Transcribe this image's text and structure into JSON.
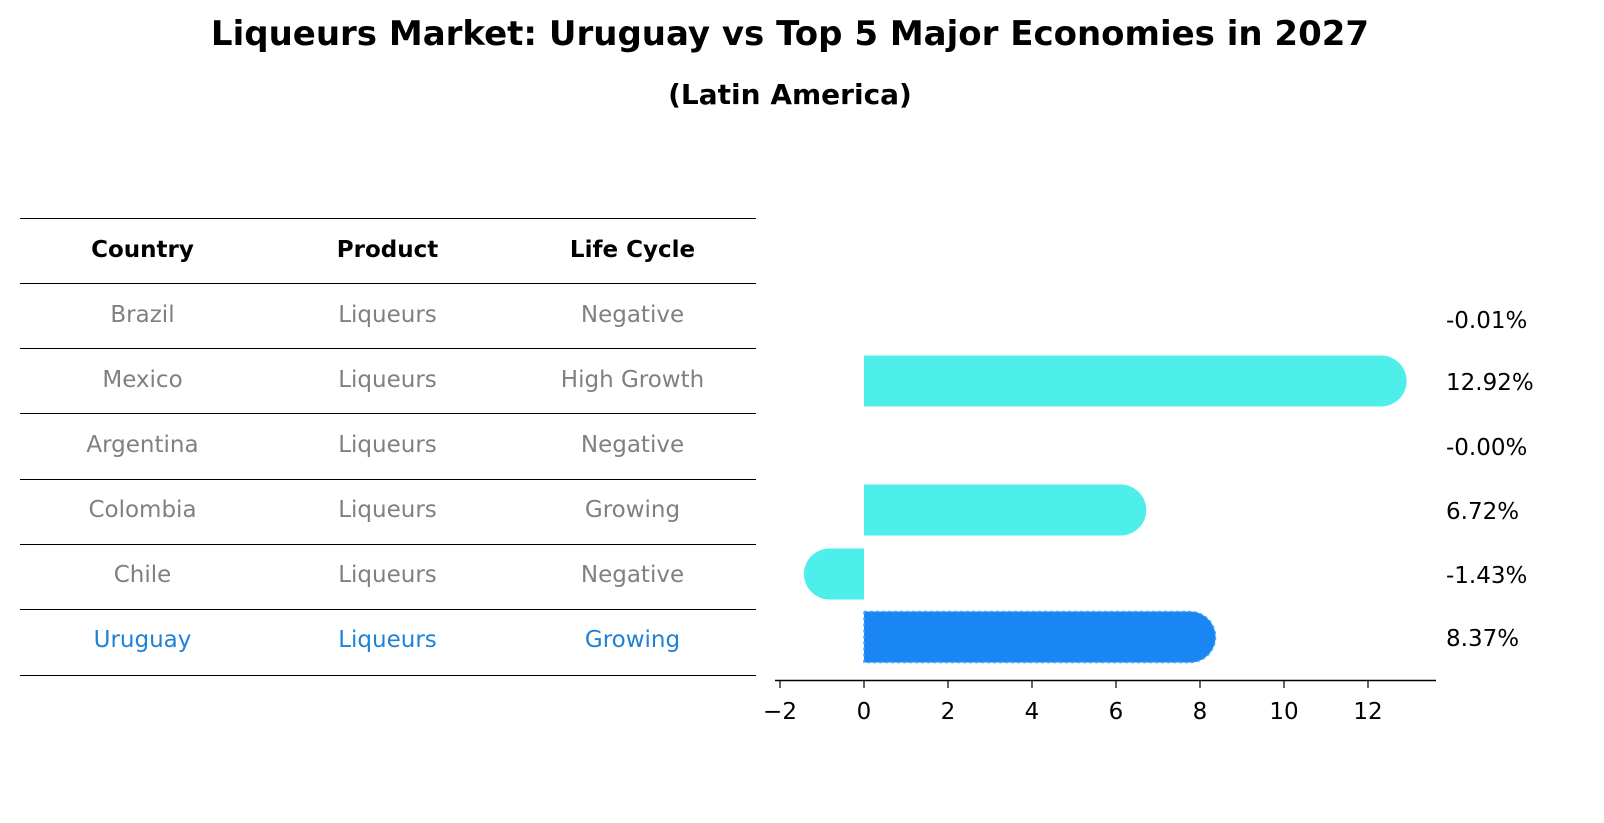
{
  "title": "Liqueurs Market: Uruguay vs Top 5 Major Economies in 2027",
  "subtitle": "(Latin America)",
  "table": {
    "headers": [
      "Country",
      "Product",
      "Life Cycle"
    ],
    "rows": [
      [
        "Brazil",
        "Liqueurs",
        "Negative"
      ],
      [
        "Mexico",
        "Liqueurs",
        "High Growth"
      ],
      [
        "Argentina",
        "Liqueurs",
        "Negative"
      ],
      [
        "Colombia",
        "Liqueurs",
        "Growing"
      ],
      [
        "Chile",
        "Liqueurs",
        "Negative"
      ],
      [
        "Uruguay",
        "Liqueurs",
        "Growing"
      ]
    ],
    "highlight_row": 5
  },
  "chart_data": {
    "type": "bar",
    "orientation": "horizontal",
    "categories": [
      "Brazil",
      "Mexico",
      "Argentina",
      "Colombia",
      "Chile",
      "Uruguay"
    ],
    "values": [
      -0.01,
      12.92,
      -0.0,
      6.72,
      -1.43,
      8.37
    ],
    "labels": [
      "-0.01%",
      "12.92%",
      "-0.00%",
      "6.72%",
      "-1.43%",
      "8.37%"
    ],
    "xlim": [
      -2.2,
      13.6
    ],
    "xticks": [
      -2,
      0,
      2,
      4,
      6,
      8,
      10,
      12
    ],
    "xtick_labels": [
      "−2",
      "0",
      "2",
      "4",
      "6",
      "8",
      "10",
      "12"
    ],
    "grid": false,
    "colors": {
      "default": "#4eeeea",
      "highlight": "#1a86f4",
      "highlight_text": "#1f82d6",
      "muted_text": "#808080"
    }
  }
}
